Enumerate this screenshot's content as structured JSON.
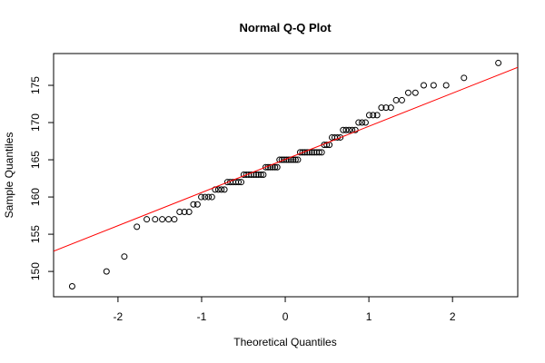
{
  "chart_data": {
    "type": "scatter",
    "title": "Normal Q-Q Plot",
    "xlabel": "Theoretical Quantiles",
    "ylabel": "Sample Quantiles",
    "x": [
      -2.548,
      -2.137,
      -1.924,
      -1.774,
      -1.656,
      -1.556,
      -1.471,
      -1.395,
      -1.326,
      -1.263,
      -1.205,
      -1.15,
      -1.098,
      -1.05,
      -1.004,
      -0.96,
      -0.918,
      -0.877,
      -0.838,
      -0.8,
      -0.763,
      -0.727,
      -0.692,
      -0.658,
      -0.624,
      -0.591,
      -0.559,
      -0.527,
      -0.496,
      -0.466,
      -0.436,
      -0.406,
      -0.376,
      -0.347,
      -0.319,
      -0.29,
      -0.262,
      -0.234,
      -0.206,
      -0.178,
      -0.151,
      -0.123,
      -0.096,
      -0.068,
      -0.041,
      -0.014,
      0.014,
      0.041,
      0.068,
      0.096,
      0.123,
      0.151,
      0.178,
      0.206,
      0.234,
      0.262,
      0.29,
      0.319,
      0.347,
      0.376,
      0.406,
      0.436,
      0.466,
      0.496,
      0.527,
      0.559,
      0.591,
      0.624,
      0.658,
      0.692,
      0.727,
      0.763,
      0.8,
      0.838,
      0.877,
      0.918,
      0.96,
      1.004,
      1.05,
      1.098,
      1.15,
      1.205,
      1.263,
      1.326,
      1.395,
      1.471,
      1.556,
      1.656,
      1.774,
      1.924,
      2.137,
      2.548
    ],
    "values": [
      148,
      150,
      152,
      156,
      157,
      157,
      157,
      157,
      157,
      158,
      158,
      158,
      159,
      159,
      160,
      160,
      160,
      160,
      161,
      161,
      161,
      161,
      162,
      162,
      162,
      162,
      162,
      162,
      163,
      163,
      163,
      163,
      163,
      163,
      163,
      163,
      163,
      164,
      164,
      164,
      164,
      164,
      164,
      165,
      165,
      165,
      165,
      165,
      165,
      165,
      165,
      165,
      166,
      166,
      166,
      166,
      166,
      166,
      166,
      166,
      166,
      166,
      167,
      167,
      167,
      168,
      168,
      168,
      168,
      169,
      169,
      169,
      169,
      169,
      170,
      170,
      170,
      171,
      171,
      171,
      172,
      172,
      172,
      173,
      173,
      174,
      174,
      175,
      175,
      175,
      176,
      178
    ],
    "color": "#000000",
    "reference_line": {
      "intercept": 165.05,
      "slope": 4.45,
      "color": "#ff0000"
    },
    "xlim": [
      -2.77,
      2.78
    ],
    "ylim": [
      146.6,
      179.27
    ],
    "xticks": [
      -2,
      -1,
      0,
      1,
      2
    ],
    "yticks": [
      150,
      155,
      160,
      165,
      170,
      175
    ]
  }
}
